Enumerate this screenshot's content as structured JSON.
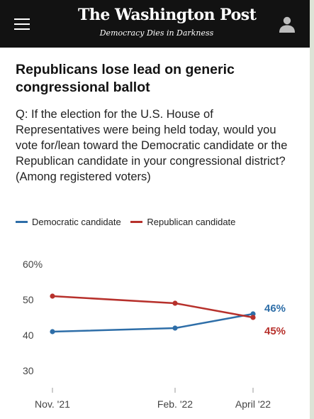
{
  "header": {
    "masthead": "The Washington Post",
    "tagline": "Democracy Dies in Darkness",
    "menu_icon": "hamburger-menu-icon",
    "profile_icon": "user-profile-icon"
  },
  "article": {
    "headline": "Republicans lose lead on generic congressional ballot",
    "question": "Q: If the election for the U.S. House of Representatives were being held today, would you vote for/lean toward the Democratic candidate or the Republican candidate in your congressional district? (Among registered voters)"
  },
  "colors": {
    "background": "#ffffff",
    "topbar": "#121212",
    "democratic": "#2e6ea8",
    "republican": "#b7312c"
  },
  "chart_data": {
    "type": "line",
    "x": [
      "Nov. '21",
      "Feb. '22",
      "April '22"
    ],
    "series": [
      {
        "name": "Democratic candidate",
        "values": [
          41,
          42,
          46
        ],
        "color": "#2e6ea8",
        "end_label": "46%"
      },
      {
        "name": "Republican candidate",
        "values": [
          51,
          49,
          45
        ],
        "color": "#b7312c",
        "end_label": "45%"
      }
    ],
    "y_ticks": [
      30,
      40,
      50,
      60
    ],
    "y_tick_labels": [
      "30",
      "40",
      "50",
      "60%"
    ],
    "ylim": [
      30,
      60
    ],
    "grid": false,
    "legend_position": "top-left"
  }
}
